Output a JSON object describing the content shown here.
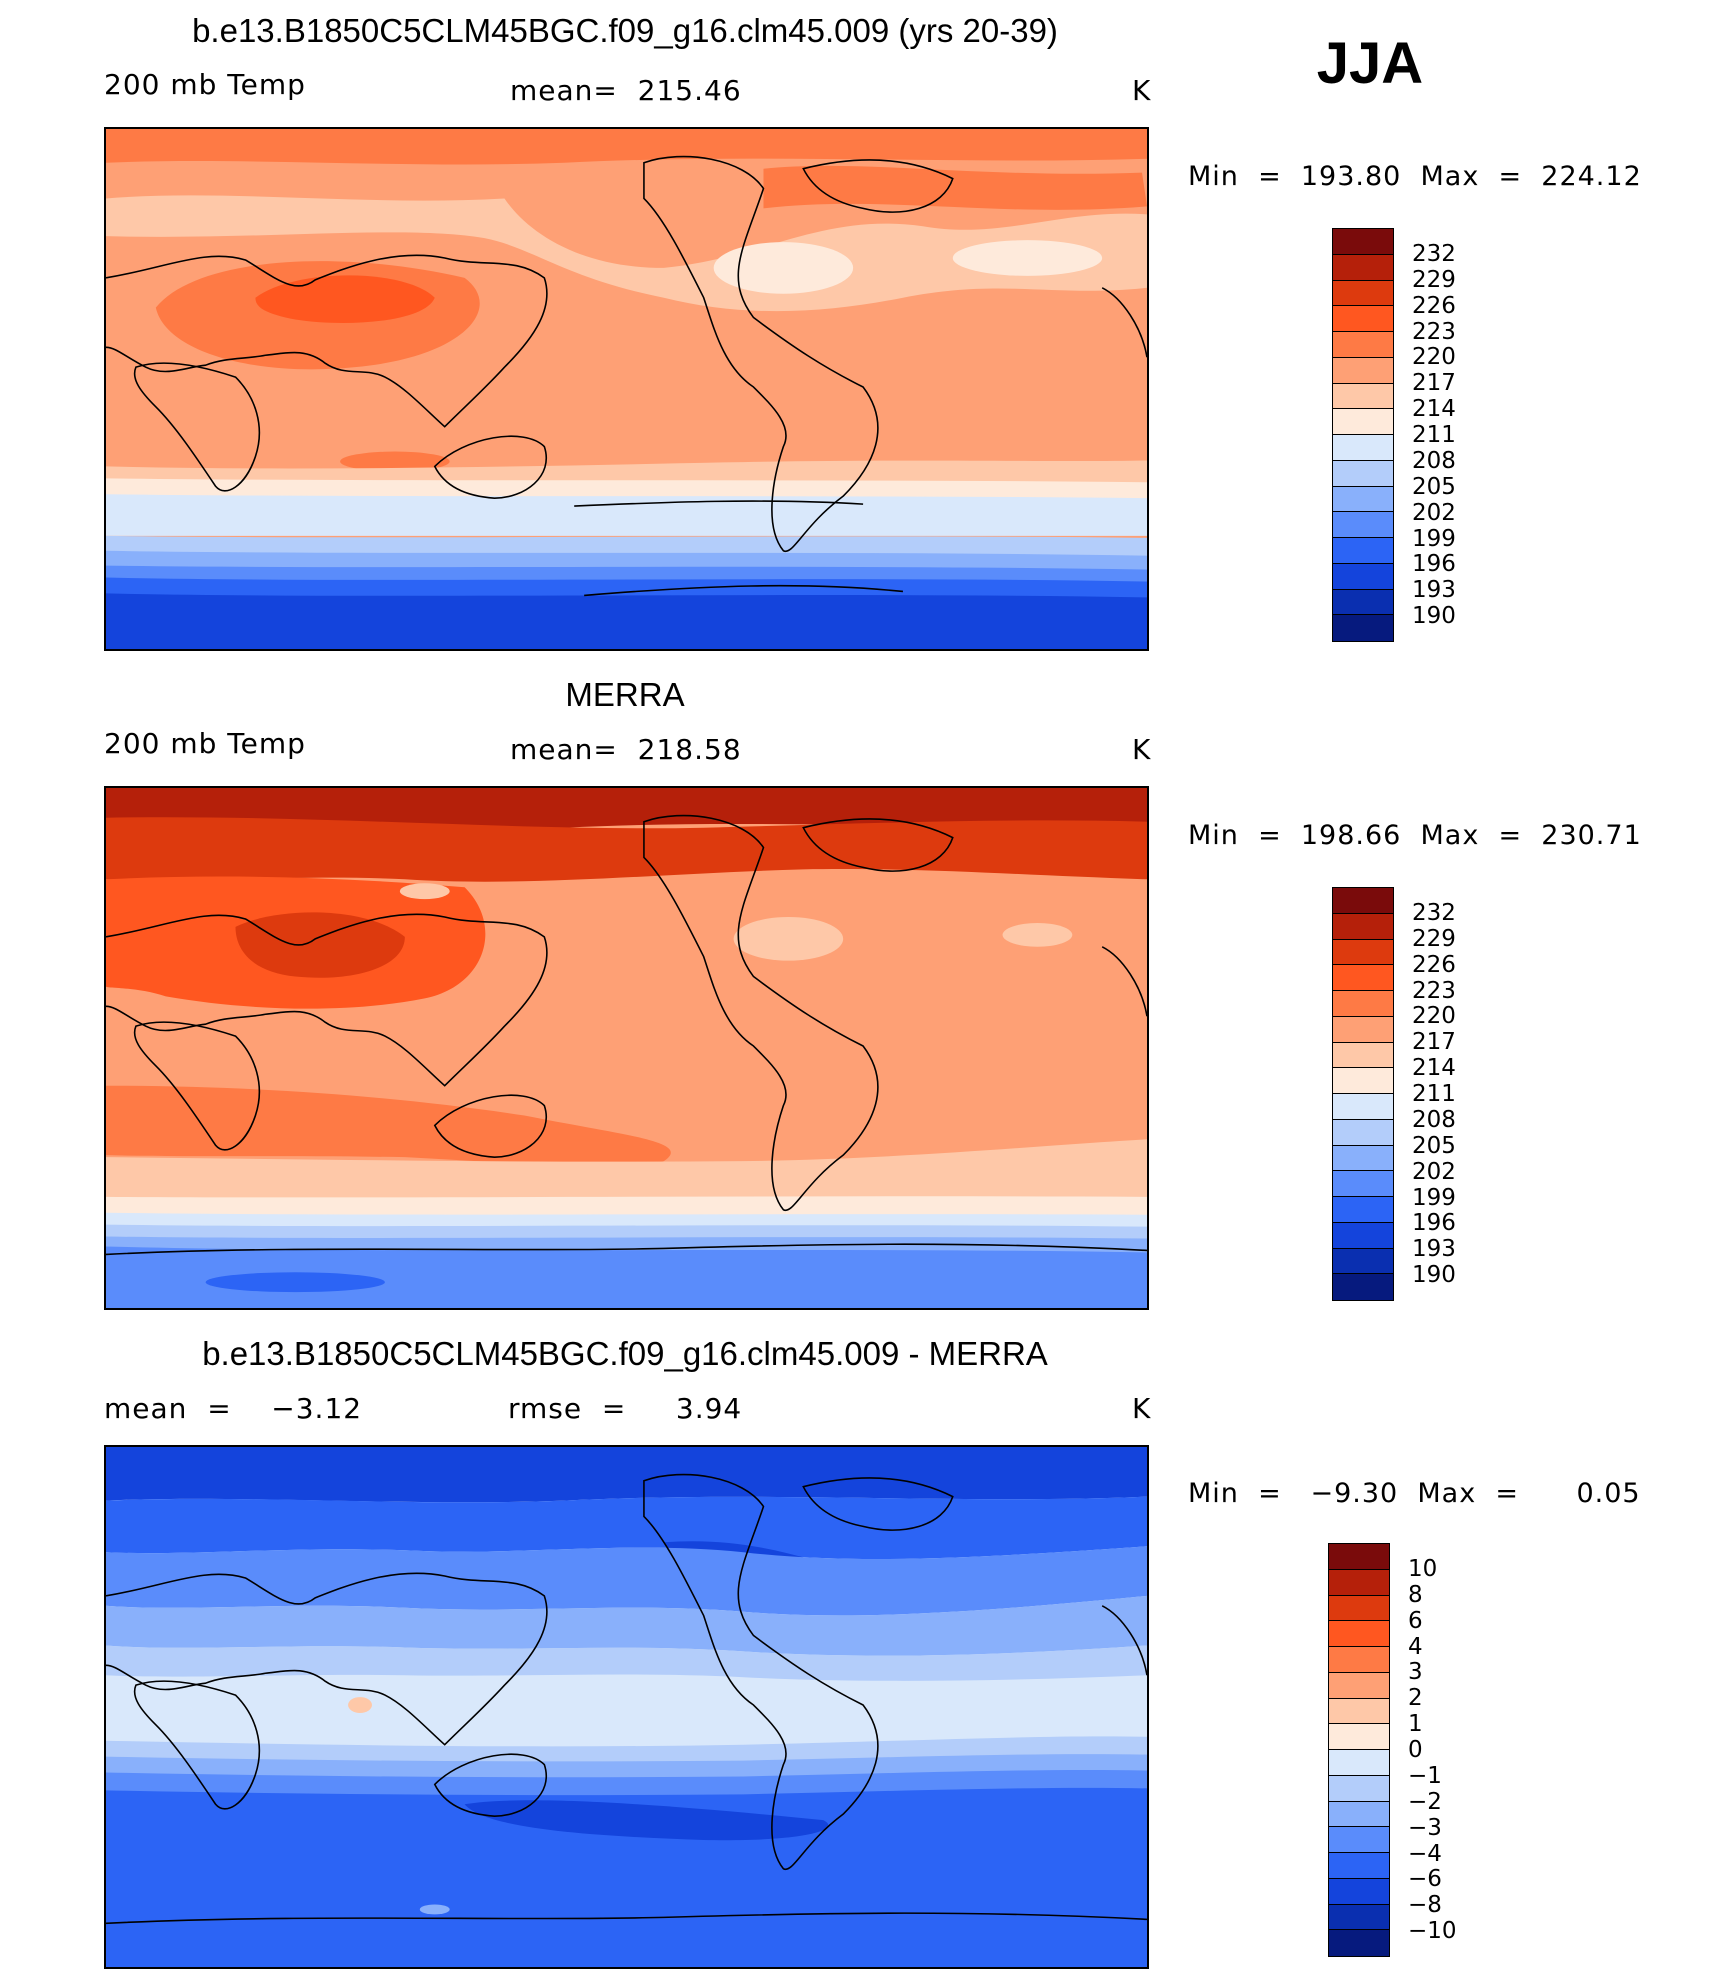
{
  "season_label": "JJA",
  "panels": [
    {
      "title": "b.e13.B1850C5CLM45BGC.f09_g16.clm45.009 (yrs 20-39)",
      "left_label": "200 mb Temp",
      "center_label": "mean=  215.46",
      "units": "K",
      "minmax": "Min  =  193.80  Max  =  224.12"
    },
    {
      "title": "MERRA",
      "left_label": "200 mb Temp",
      "center_label": "mean=  218.58",
      "units": "K",
      "minmax": "Min  =  198.66  Max  =  230.71"
    },
    {
      "title": "b.e13.B1850C5CLM45BGC.f09_g16.clm45.009 - MERRA",
      "left_label": "mean  =    −3.12",
      "center_label": "rmse  =     3.94",
      "units": "K",
      "minmax": "Min  =   −9.30  Max  =      0.05"
    }
  ],
  "colorbars": {
    "temperature": {
      "levels": [
        "232",
        "229",
        "226",
        "223",
        "220",
        "217",
        "214",
        "211",
        "208",
        "205",
        "202",
        "199",
        "196",
        "193",
        "190"
      ],
      "colors": [
        "#7a0b0b",
        "#b5200a",
        "#dd3a0e",
        "#ff5720",
        "#fe7a45",
        "#fea075",
        "#fec8a8",
        "#feeadb",
        "#d9e8fb",
        "#b3cdfa",
        "#89b0fb",
        "#5a8cfb",
        "#2c64f5",
        "#1444dc",
        "#0a2fb0",
        "#061a7e"
      ]
    },
    "difference": {
      "levels": [
        "10",
        "8",
        "6",
        "4",
        "3",
        "2",
        "1",
        "0",
        "−1",
        "−2",
        "−3",
        "−4",
        "−6",
        "−8",
        "−10"
      ],
      "colors": [
        "#7a0b0b",
        "#b5200a",
        "#dd3a0e",
        "#ff5720",
        "#fe7a45",
        "#fea075",
        "#fec8a8",
        "#feeadb",
        "#d9e8fb",
        "#b3cdfa",
        "#89b0fb",
        "#5a8cfb",
        "#2c64f5",
        "#1444dc",
        "#0a2fb0",
        "#061a7e"
      ]
    }
  }
}
